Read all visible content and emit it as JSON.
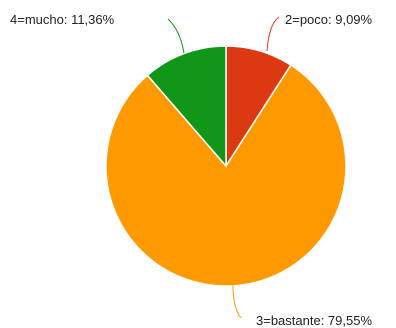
{
  "chart_data": {
    "type": "pie",
    "title": "",
    "slices": [
      {
        "label": "2=poco: 9,09%",
        "category": "2=poco",
        "value": 9.09,
        "color": "#dc3912"
      },
      {
        "label": "3=bastante: 79,55%",
        "category": "3=bastante",
        "value": 79.55,
        "color": "#ff9900"
      },
      {
        "label": "4=mucho: 11,36%",
        "category": "4=mucho",
        "value": 11.36,
        "color": "#109618"
      }
    ],
    "start": "12 o'clock",
    "direction": "clockwise",
    "legend": "none",
    "label_placement": "outside with leader lines"
  }
}
